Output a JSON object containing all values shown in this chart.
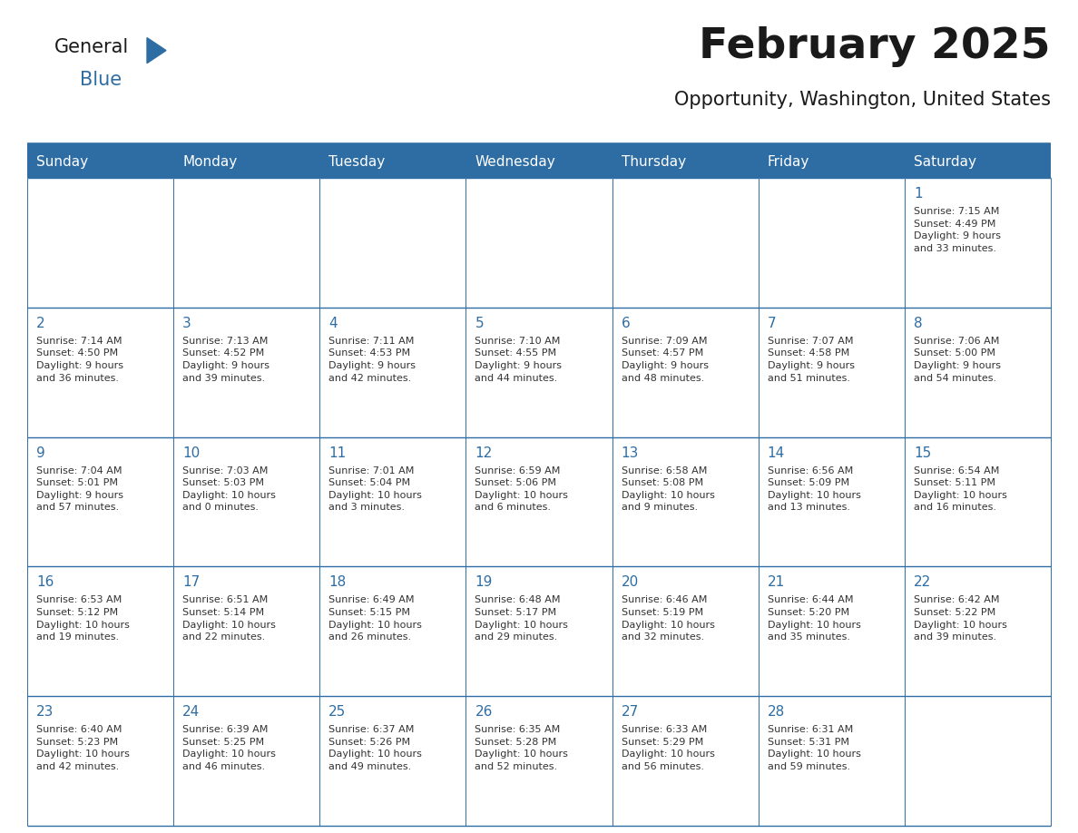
{
  "title": "February 2025",
  "subtitle": "Opportunity, Washington, United States",
  "header_bg_color": "#2E6DA4",
  "header_text_color": "#FFFFFF",
  "cell_bg_color": "#FFFFFF",
  "border_color": "#2E6DA4",
  "title_color": "#1a1a1a",
  "subtitle_color": "#1a1a1a",
  "day_number_color": "#2E6DA4",
  "cell_text_color": "#333333",
  "days_of_week": [
    "Sunday",
    "Monday",
    "Tuesday",
    "Wednesday",
    "Thursday",
    "Friday",
    "Saturday"
  ],
  "logo_text1": "General",
  "logo_text2": "Blue",
  "logo_triangle_color": "#2E6DA4",
  "weeks": [
    [
      {
        "day": null,
        "info": null
      },
      {
        "day": null,
        "info": null
      },
      {
        "day": null,
        "info": null
      },
      {
        "day": null,
        "info": null
      },
      {
        "day": null,
        "info": null
      },
      {
        "day": null,
        "info": null
      },
      {
        "day": 1,
        "info": "Sunrise: 7:15 AM\nSunset: 4:49 PM\nDaylight: 9 hours\nand 33 minutes."
      }
    ],
    [
      {
        "day": 2,
        "info": "Sunrise: 7:14 AM\nSunset: 4:50 PM\nDaylight: 9 hours\nand 36 minutes."
      },
      {
        "day": 3,
        "info": "Sunrise: 7:13 AM\nSunset: 4:52 PM\nDaylight: 9 hours\nand 39 minutes."
      },
      {
        "day": 4,
        "info": "Sunrise: 7:11 AM\nSunset: 4:53 PM\nDaylight: 9 hours\nand 42 minutes."
      },
      {
        "day": 5,
        "info": "Sunrise: 7:10 AM\nSunset: 4:55 PM\nDaylight: 9 hours\nand 44 minutes."
      },
      {
        "day": 6,
        "info": "Sunrise: 7:09 AM\nSunset: 4:57 PM\nDaylight: 9 hours\nand 48 minutes."
      },
      {
        "day": 7,
        "info": "Sunrise: 7:07 AM\nSunset: 4:58 PM\nDaylight: 9 hours\nand 51 minutes."
      },
      {
        "day": 8,
        "info": "Sunrise: 7:06 AM\nSunset: 5:00 PM\nDaylight: 9 hours\nand 54 minutes."
      }
    ],
    [
      {
        "day": 9,
        "info": "Sunrise: 7:04 AM\nSunset: 5:01 PM\nDaylight: 9 hours\nand 57 minutes."
      },
      {
        "day": 10,
        "info": "Sunrise: 7:03 AM\nSunset: 5:03 PM\nDaylight: 10 hours\nand 0 minutes."
      },
      {
        "day": 11,
        "info": "Sunrise: 7:01 AM\nSunset: 5:04 PM\nDaylight: 10 hours\nand 3 minutes."
      },
      {
        "day": 12,
        "info": "Sunrise: 6:59 AM\nSunset: 5:06 PM\nDaylight: 10 hours\nand 6 minutes."
      },
      {
        "day": 13,
        "info": "Sunrise: 6:58 AM\nSunset: 5:08 PM\nDaylight: 10 hours\nand 9 minutes."
      },
      {
        "day": 14,
        "info": "Sunrise: 6:56 AM\nSunset: 5:09 PM\nDaylight: 10 hours\nand 13 minutes."
      },
      {
        "day": 15,
        "info": "Sunrise: 6:54 AM\nSunset: 5:11 PM\nDaylight: 10 hours\nand 16 minutes."
      }
    ],
    [
      {
        "day": 16,
        "info": "Sunrise: 6:53 AM\nSunset: 5:12 PM\nDaylight: 10 hours\nand 19 minutes."
      },
      {
        "day": 17,
        "info": "Sunrise: 6:51 AM\nSunset: 5:14 PM\nDaylight: 10 hours\nand 22 minutes."
      },
      {
        "day": 18,
        "info": "Sunrise: 6:49 AM\nSunset: 5:15 PM\nDaylight: 10 hours\nand 26 minutes."
      },
      {
        "day": 19,
        "info": "Sunrise: 6:48 AM\nSunset: 5:17 PM\nDaylight: 10 hours\nand 29 minutes."
      },
      {
        "day": 20,
        "info": "Sunrise: 6:46 AM\nSunset: 5:19 PM\nDaylight: 10 hours\nand 32 minutes."
      },
      {
        "day": 21,
        "info": "Sunrise: 6:44 AM\nSunset: 5:20 PM\nDaylight: 10 hours\nand 35 minutes."
      },
      {
        "day": 22,
        "info": "Sunrise: 6:42 AM\nSunset: 5:22 PM\nDaylight: 10 hours\nand 39 minutes."
      }
    ],
    [
      {
        "day": 23,
        "info": "Sunrise: 6:40 AM\nSunset: 5:23 PM\nDaylight: 10 hours\nand 42 minutes."
      },
      {
        "day": 24,
        "info": "Sunrise: 6:39 AM\nSunset: 5:25 PM\nDaylight: 10 hours\nand 46 minutes."
      },
      {
        "day": 25,
        "info": "Sunrise: 6:37 AM\nSunset: 5:26 PM\nDaylight: 10 hours\nand 49 minutes."
      },
      {
        "day": 26,
        "info": "Sunrise: 6:35 AM\nSunset: 5:28 PM\nDaylight: 10 hours\nand 52 minutes."
      },
      {
        "day": 27,
        "info": "Sunrise: 6:33 AM\nSunset: 5:29 PM\nDaylight: 10 hours\nand 56 minutes."
      },
      {
        "day": 28,
        "info": "Sunrise: 6:31 AM\nSunset: 5:31 PM\nDaylight: 10 hours\nand 59 minutes."
      },
      {
        "day": null,
        "info": null
      }
    ]
  ]
}
